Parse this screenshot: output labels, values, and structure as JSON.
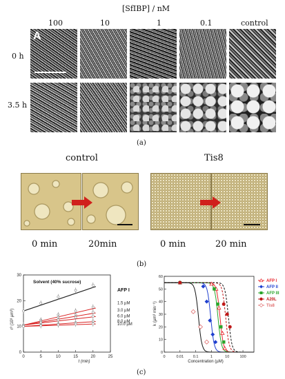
{
  "panel_a": {
    "header": "[SfIBP] / nM",
    "columns": [
      "100",
      "10",
      "1",
      "0.1",
      "control"
    ],
    "rows": [
      "0 h",
      "3.5 h"
    ],
    "tile_letter": "A",
    "caption": "(a)"
  },
  "panel_b": {
    "group_left": "control",
    "group_right": "Tis8",
    "times": [
      "0 min",
      "20min",
      "0 min",
      "20 min"
    ],
    "caption": "(b)"
  },
  "panel_c": {
    "caption": "(c)",
    "left_chart": {
      "title": "Solvent (40% sucrose)",
      "legend_header": "AFP I",
      "ylabel": "r³ (10³ µm³)",
      "xlabel": "t (min)",
      "x_ticks": [
        "0",
        "5",
        "10",
        "15",
        "20",
        "25"
      ],
      "y_ticks": [
        "0",
        "10",
        "20",
        "30"
      ],
      "series_labels": [
        "1.5 µM",
        "3.0 µM",
        "6.0 µM",
        "8.0 µM",
        "10.0 µM"
      ]
    },
    "right_chart": {
      "ylabel": "k (µm³ min⁻¹)",
      "xlabel": "Concentration (µM)",
      "x_ticks": [
        "0",
        "0.01",
        "0.1",
        "1",
        "10",
        "100"
      ],
      "y_ticks": [
        "0",
        "10",
        "20",
        "30",
        "40",
        "50",
        "60"
      ],
      "legend": [
        {
          "name": "AFP I",
          "color": "#e8242b"
        },
        {
          "name": "AFP II",
          "color": "#1f3fcf"
        },
        {
          "name": "AFP III",
          "color": "#2aa52a"
        },
        {
          "name": "A20L",
          "color": "#c01818"
        },
        {
          "name": "Tis8",
          "color": "#e07070"
        }
      ]
    }
  },
  "chart_data": [
    {
      "type": "line",
      "title": "Solvent (40% sucrose)",
      "xlabel": "t (min)",
      "ylabel": "r³ (10³ µm³)",
      "xlim": [
        0,
        25
      ],
      "ylim": [
        0,
        30
      ],
      "x": [
        0,
        5,
        10,
        15,
        20
      ],
      "series": [
        {
          "name": "Solvent (40% sucrose)",
          "values": [
            16,
            19,
            21.5,
            24,
            26
          ]
        },
        {
          "name": "1.5 µM",
          "values": [
            10.5,
            12.5,
            14.5,
            16,
            17.5
          ]
        },
        {
          "name": "3.0 µM",
          "values": [
            10.5,
            12,
            13.5,
            14.5,
            15.5
          ]
        },
        {
          "name": "6.0 µM",
          "values": [
            10.5,
            11.5,
            12.5,
            13.5,
            14
          ]
        },
        {
          "name": "8.0 µM",
          "values": [
            10,
            10.5,
            11,
            11.5,
            12
          ]
        },
        {
          "name": "10.0 µM",
          "values": [
            10,
            10.3,
            10.6,
            10.9,
            11
          ]
        }
      ]
    },
    {
      "type": "line",
      "xlabel": "Concentration (µM)",
      "ylabel": "k (µm³ min⁻¹)",
      "xscale": "log",
      "ylim": [
        0,
        60
      ],
      "series": [
        {
          "name": "AFP I",
          "color": "#e8242b",
          "x": [
            0.01,
            1,
            2,
            3,
            5,
            7
          ],
          "values": [
            55,
            54,
            50,
            35,
            15,
            3
          ]
        },
        {
          "name": "AFP II",
          "color": "#1f3fcf",
          "x": [
            0.01,
            0.3,
            0.5,
            0.8,
            1.2,
            1.8
          ],
          "values": [
            55,
            52,
            40,
            25,
            14,
            8
          ]
        },
        {
          "name": "AFP III",
          "color": "#2aa52a",
          "x": [
            0.01,
            1.5,
            2.5,
            4,
            6
          ],
          "values": [
            55,
            50,
            38,
            20,
            8
          ]
        },
        {
          "name": "A20L",
          "color": "#c01818",
          "x": [
            0.01,
            6,
            10,
            15
          ],
          "values": [
            55,
            38,
            30,
            20
          ]
        },
        {
          "name": "Tis8",
          "color": "#e07070",
          "x": [
            0.07,
            0.2,
            0.5
          ],
          "values": [
            32,
            20,
            8
          ]
        }
      ]
    }
  ]
}
